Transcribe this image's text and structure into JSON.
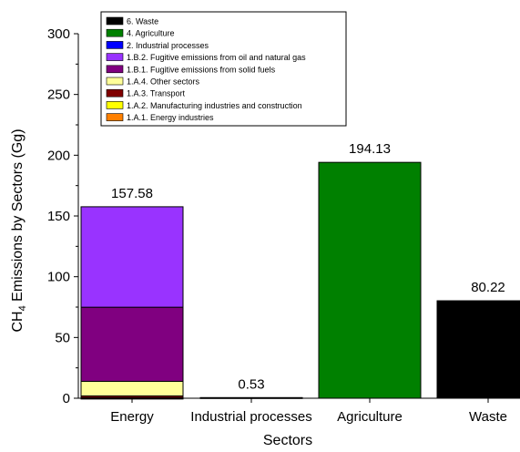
{
  "chart_data": {
    "type": "bar",
    "stacked": true,
    "categories": [
      "Energy",
      "Industrial processes",
      "Agriculture",
      "Waste"
    ],
    "xlabel": "Sectors",
    "ylabel": {
      "prefix": "CH",
      "subscript": "4",
      "suffix": " Emissions by Sectors (Gg)"
    },
    "ylim": [
      0,
      300
    ],
    "yticks": [
      0,
      50,
      100,
      150,
      200,
      250,
      300
    ],
    "grid": false,
    "legend_position": "top-left",
    "series": [
      {
        "name": "1.A.1. Energy industries",
        "color": "#ff8000",
        "values": [
          0.1,
          0,
          0,
          0
        ]
      },
      {
        "name": "1.A.2. Manufacturing industries and construction",
        "color": "#ffff00",
        "values": [
          0.3,
          0,
          0,
          0
        ]
      },
      {
        "name": "1.A.3. Transport",
        "color": "#800000",
        "values": [
          1.5,
          0,
          0,
          0
        ]
      },
      {
        "name": "1.A.4. Other sectors",
        "color": "#ffff99",
        "values": [
          12.0,
          0,
          0,
          0
        ]
      },
      {
        "name": "1.B.1. Fugitive emissions from solid fuels",
        "color": "#800080",
        "values": [
          61.0,
          0,
          0,
          0
        ]
      },
      {
        "name": "1.B.2. Fugitive emissions from oil and natural gas",
        "color": "#9933ff",
        "values": [
          82.68,
          0,
          0,
          0
        ]
      },
      {
        "name": "2. Industrial processes",
        "color": "#0000ff",
        "values": [
          0,
          0.53,
          0,
          0
        ]
      },
      {
        "name": "4. Agriculture",
        "color": "#008000",
        "values": [
          0,
          0,
          194.13,
          0
        ]
      },
      {
        "name": "6. Waste",
        "color": "#000000",
        "values": [
          0,
          0,
          0,
          80.22
        ]
      }
    ],
    "totals": [
      "157.58",
      "0.53",
      "194.13",
      "80.22"
    ]
  }
}
